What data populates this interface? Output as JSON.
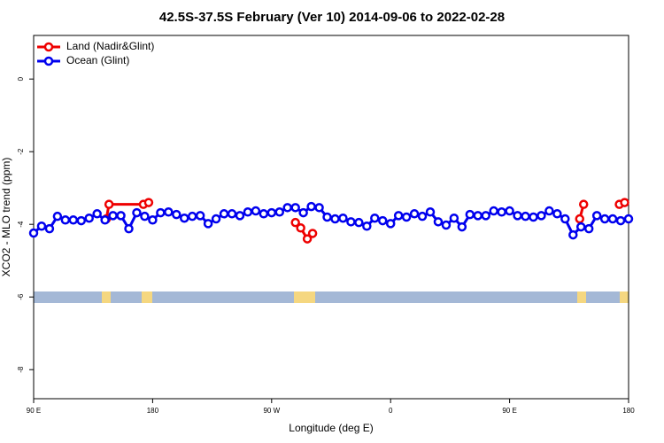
{
  "chart_data": {
    "type": "line",
    "title": "42.5S-37.5S February (Ver 10)   2014-09-06 to 2022-02-28",
    "x_label": "Longitude (deg E)",
    "y_label": "XCO2 - MLO trend (ppm)",
    "xlim": [
      -270,
      180
    ],
    "ylim": [
      -8.8,
      1.2
    ],
    "xticks": [
      {
        "value": -270,
        "label": "90 E"
      },
      {
        "value": -180,
        "label": "180"
      },
      {
        "value": -90,
        "label": "90 W"
      },
      0,
      {
        "value": 90,
        "label": "90 E"
      },
      180
    ],
    "yticks": [
      0,
      -2,
      -4,
      -6,
      -8
    ],
    "legend": "top-left",
    "series": [
      {
        "name": "Land (Nadir&Glint)",
        "color": "#ee0000",
        "x": [
          -215,
          -213,
          -187,
          -183,
          null,
          -72,
          -68,
          -63,
          -59,
          null,
          143,
          146,
          null,
          173,
          177
        ],
        "values": [
          -3.85,
          -3.45,
          -3.45,
          -3.4,
          null,
          -3.95,
          -4.1,
          -4.4,
          -4.25,
          null,
          -3.85,
          -3.45,
          null,
          -3.45,
          -3.4
        ]
      },
      {
        "name": "Ocean (Glint)",
        "color": "#0000ee",
        "x": [
          -270,
          -264,
          -258,
          -252,
          -246,
          -240,
          -234,
          -228,
          -222,
          -216,
          -210,
          -204,
          -198,
          -192,
          -186,
          -180,
          -174,
          -168,
          -162,
          -156,
          -150,
          -144,
          -138,
          -132,
          -126,
          -120,
          -114,
          -108,
          -102,
          -96,
          -90,
          -84,
          -78,
          -72,
          -66,
          -60,
          -54,
          -48,
          -42,
          -36,
          -30,
          -24,
          -18,
          -12,
          -6,
          0,
          6,
          12,
          18,
          24,
          30,
          36,
          42,
          48,
          54,
          60,
          66,
          72,
          78,
          84,
          90,
          96,
          102,
          108,
          114,
          120,
          126,
          132,
          138,
          144,
          150,
          156,
          162,
          168,
          174,
          180
        ],
        "values": [
          -4.24,
          -4.05,
          -4.12,
          -3.78,
          -3.88,
          -3.88,
          -3.9,
          -3.83,
          -3.71,
          -3.88,
          -3.76,
          -3.76,
          -4.12,
          -3.68,
          -3.78,
          -3.88,
          -3.68,
          -3.66,
          -3.73,
          -3.83,
          -3.78,
          -3.76,
          -3.98,
          -3.85,
          -3.71,
          -3.71,
          -3.76,
          -3.66,
          -3.63,
          -3.71,
          -3.68,
          -3.66,
          -3.54,
          -3.54,
          -3.68,
          -3.51,
          -3.54,
          -3.8,
          -3.85,
          -3.83,
          -3.93,
          -3.95,
          -4.05,
          -3.83,
          -3.9,
          -3.98,
          -3.76,
          -3.8,
          -3.71,
          -3.78,
          -3.66,
          -3.93,
          -4.02,
          -3.83,
          -4.07,
          -3.73,
          -3.76,
          -3.76,
          -3.63,
          -3.66,
          -3.63,
          -3.76,
          -3.78,
          -3.8,
          -3.76,
          -3.63,
          -3.71,
          -3.85,
          -4.29,
          -4.07,
          -4.12,
          -3.76,
          -3.85,
          -3.85,
          -3.9,
          -3.85
        ]
      }
    ]
  }
}
